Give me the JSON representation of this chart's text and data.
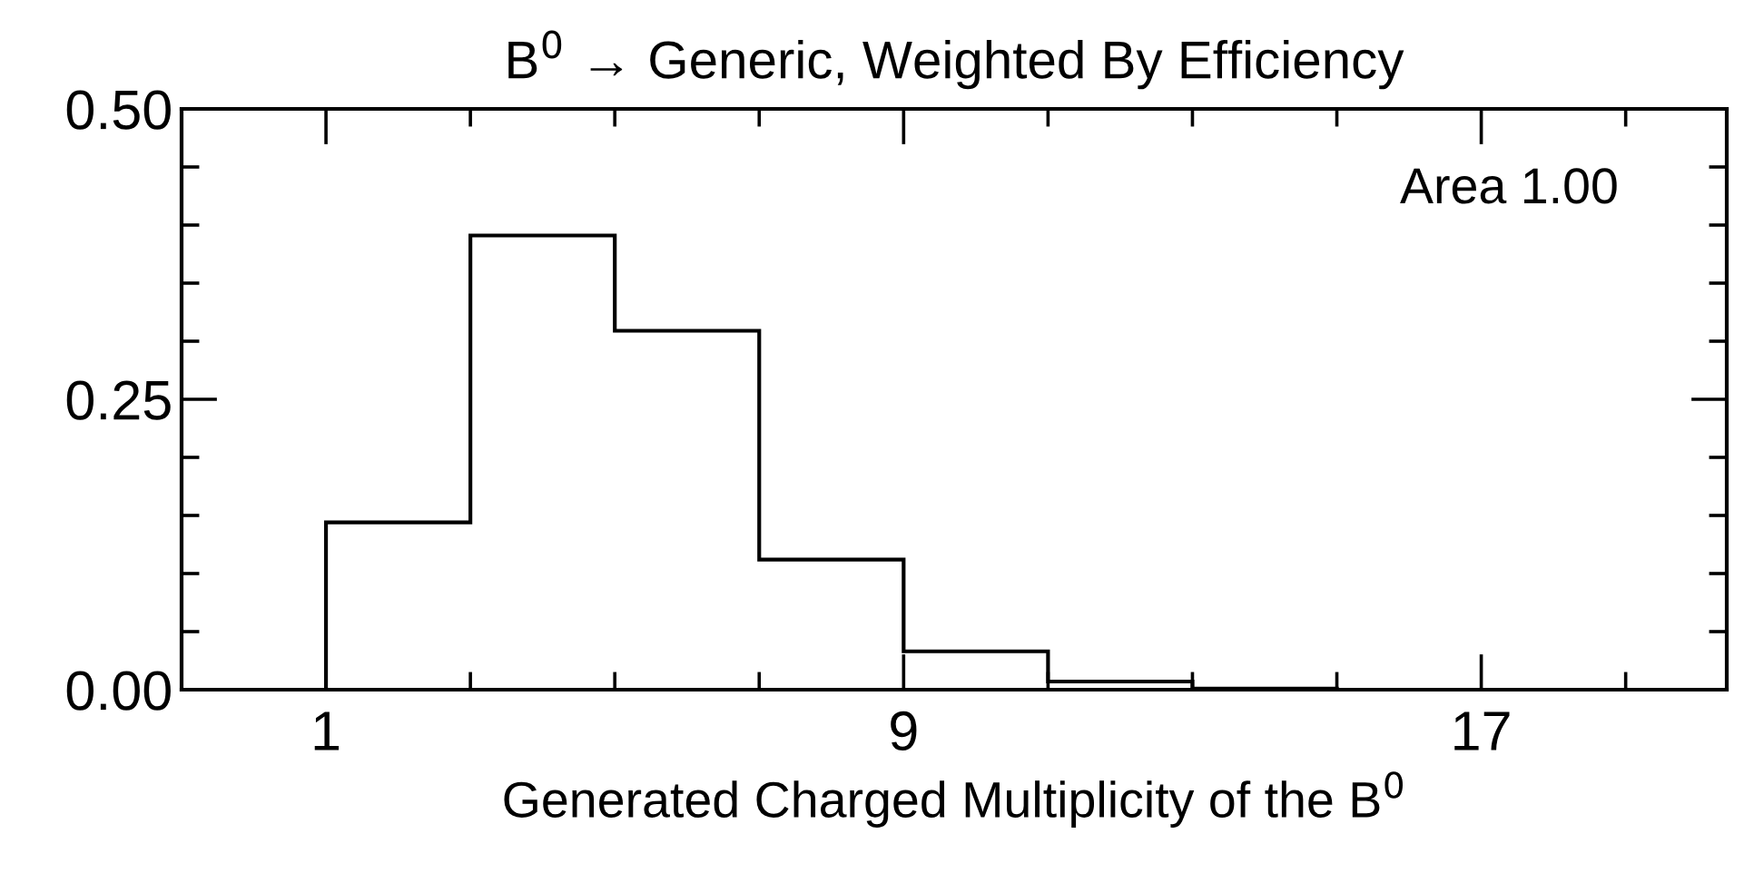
{
  "chart_data": {
    "type": "histogram",
    "title": "B$^{0}$ → Generic, Weighted By Efficiency",
    "xlabel": "Generated Charged Multiplicity of the B$^{0}$",
    "bins": [
      -1,
      1,
      3,
      5,
      7,
      9,
      11,
      13,
      15,
      17,
      19
    ],
    "values": [
      0,
      0.144,
      0.391,
      0.309,
      0.112,
      0.033,
      0.007,
      0.001,
      0,
      0
    ],
    "color": "#000000",
    "xlim": [
      -1,
      20.4
    ],
    "ylim": [
      0,
      0.5
    ],
    "xticks": [
      1,
      {
        "value": 3,
        "label": null
      },
      {
        "value": 5,
        "label": null
      },
      {
        "value": 7,
        "label": null
      },
      9,
      {
        "value": 11,
        "label": null
      },
      {
        "value": 13,
        "label": null
      },
      {
        "value": 15,
        "label": null
      },
      17,
      {
        "value": 19,
        "label": null
      }
    ],
    "yticks": [
      {
        "value": 0,
        "label": "0.00"
      },
      {
        "value": 0.05,
        "label": null
      },
      {
        "value": 0.1,
        "label": null
      },
      {
        "value": 0.15,
        "label": null
      },
      {
        "value": 0.2,
        "label": null
      },
      {
        "value": 0.25,
        "label": "0.25"
      },
      {
        "value": 0.3,
        "label": null
      },
      {
        "value": 0.35,
        "label": null
      },
      {
        "value": 0.4,
        "label": null
      },
      {
        "value": 0.45,
        "label": null
      },
      {
        "value": 0.5,
        "label": "0.50"
      }
    ],
    "annotations": [
      "Area 1.00"
    ],
    "grid": false,
    "legend": false
  }
}
